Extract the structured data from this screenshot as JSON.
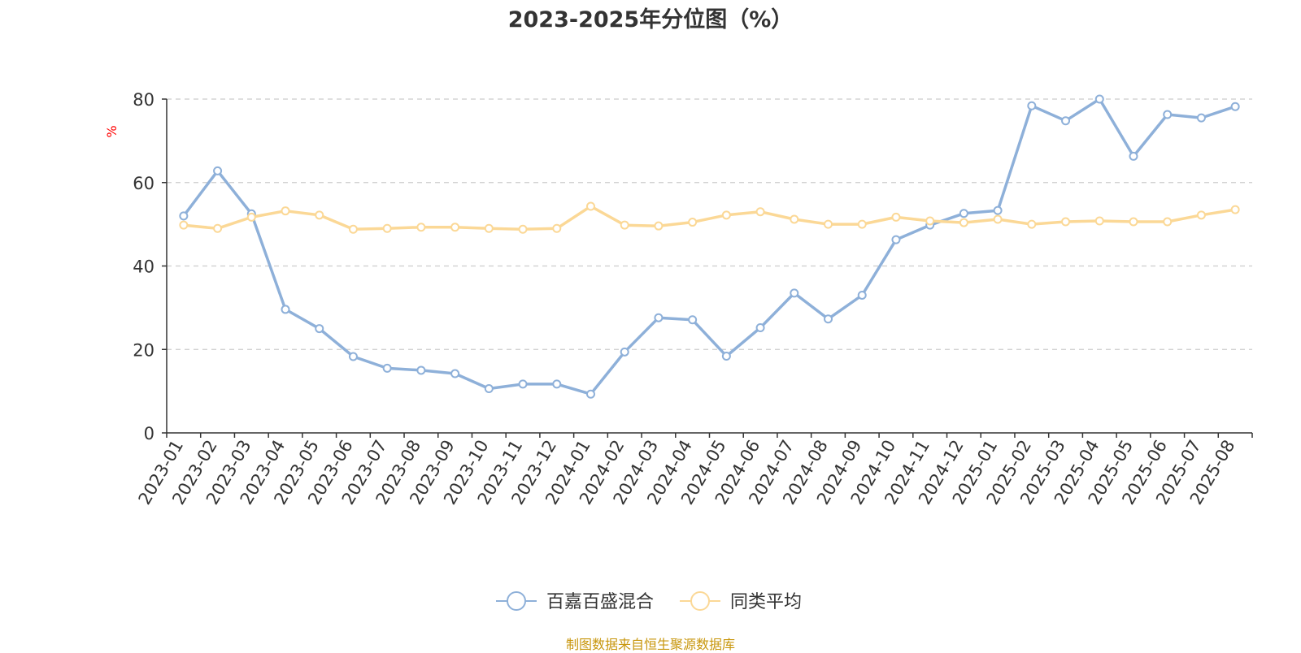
{
  "chart_data": {
    "type": "line",
    "title": "2023-2025年分位图（%）",
    "ylabel": "%",
    "xlabel": "",
    "ylim": [
      0,
      80
    ],
    "yticks": [
      0,
      20,
      40,
      60,
      80
    ],
    "grid": true,
    "legend_position": "bottom-center",
    "categories": [
      "2023-01",
      "2023-02",
      "2023-03",
      "2023-04",
      "2023-05",
      "2023-06",
      "2023-07",
      "2023-08",
      "2023-09",
      "2023-10",
      "2023-11",
      "2023-12",
      "2024-01",
      "2024-02",
      "2024-03",
      "2024-04",
      "2024-05",
      "2024-06",
      "2024-07",
      "2024-08",
      "2024-09",
      "2024-10",
      "2024-11",
      "2024-12",
      "2025-01",
      "2025-02",
      "2025-03",
      "2025-04",
      "2025-05",
      "2025-06",
      "2025-07",
      "2025-08"
    ],
    "series": [
      {
        "name": "百嘉百盛混合",
        "color": "#8eb0d9",
        "values": [
          52.0,
          62.8,
          52.5,
          29.6,
          25.0,
          18.3,
          15.5,
          15.0,
          14.2,
          10.6,
          11.7,
          11.7,
          9.3,
          19.4,
          27.6,
          27.1,
          18.4,
          25.2,
          33.5,
          27.3,
          33.0,
          46.3,
          49.8,
          52.6,
          53.3,
          78.4,
          74.8,
          80.0,
          66.3,
          76.3,
          75.5,
          78.2
        ]
      },
      {
        "name": "同类平均",
        "color": "#fbd896",
        "values": [
          49.8,
          49.0,
          51.7,
          53.2,
          52.2,
          48.8,
          49.0,
          49.3,
          49.3,
          49.0,
          48.8,
          49.0,
          54.3,
          49.8,
          49.6,
          50.5,
          52.2,
          53.0,
          51.2,
          50.0,
          50.0,
          51.7,
          50.8,
          50.4,
          51.2,
          50.0,
          50.6,
          50.8,
          50.6,
          50.6,
          52.2,
          53.5
        ]
      }
    ]
  },
  "footer": {
    "source": "制图数据来自恒生聚源数据库"
  }
}
